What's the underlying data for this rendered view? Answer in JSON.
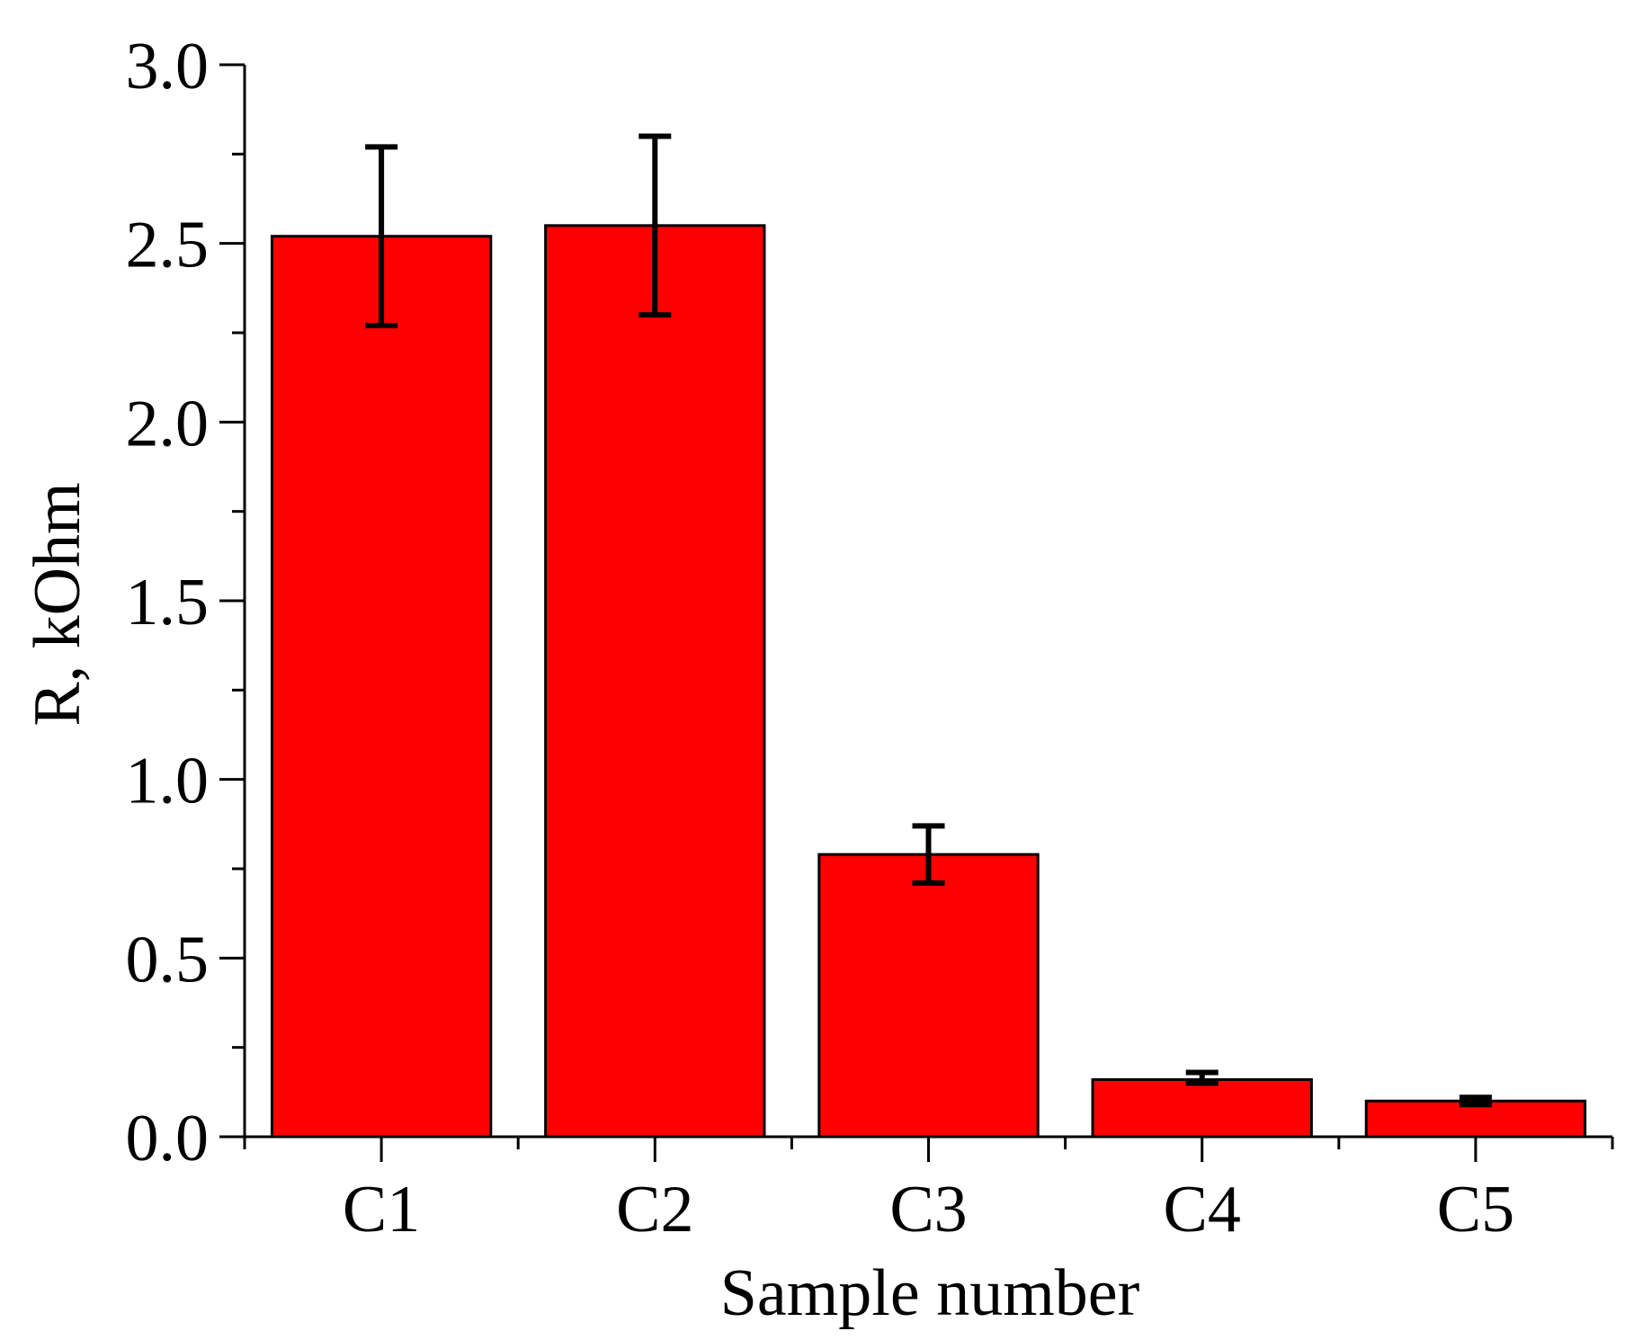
{
  "chart_data": {
    "type": "bar",
    "title": "",
    "xlabel": "Sample number",
    "ylabel": "R, kOhm",
    "categories": [
      "C1",
      "C2",
      "C3",
      "C4",
      "C5"
    ],
    "values": [
      2.52,
      2.55,
      0.79,
      0.16,
      0.1
    ],
    "error_low": [
      2.27,
      2.3,
      0.71,
      0.15,
      0.09
    ],
    "error_high": [
      2.77,
      2.8,
      0.87,
      0.18,
      0.11
    ],
    "ylim": [
      0,
      3.0
    ],
    "yticks": [
      "0.0",
      "0.5",
      "1.0",
      "1.5",
      "2.0",
      "2.5",
      "3.0"
    ],
    "grid": false,
    "legend": "none",
    "colors": {
      "bar_fill": "#ff0000",
      "bar_stroke": "#000000",
      "axis": "#000000",
      "error_bar": "#000000"
    }
  }
}
